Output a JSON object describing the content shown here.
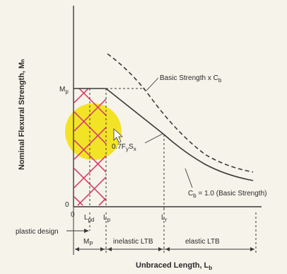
{
  "diagram": {
    "y_axis_title": "Nominal Flexural Strength, Mₙ",
    "x_axis_title": "Unbraced Length, L",
    "x_axis_title_sub": "b",
    "mp_label": "M",
    "mp_label_sub": "p",
    "origin_label": "0",
    "origin_label_x": "0",
    "lpd_label": "L",
    "lpd_label_sub": "pd",
    "lp_label": "L",
    "lp_label_sub": "p",
    "lr_label": "L",
    "lr_label_sub": "r",
    "curve_cb_label": "Basic Strength x C",
    "curve_cb_label_sub": "b",
    "curve_basic_label": "C",
    "curve_basic_label_sub": "b",
    "curve_basic_label_rest": " = 1.0 (Basic Strength)",
    "mid_value_label": "0.7F",
    "mid_value_label_sub1": "y",
    "mid_value_label_s": "S",
    "mid_value_label_sub2": "x",
    "plastic_design": "plastic design",
    "zone_mp": "M",
    "zone_mp_sub": "P",
    "zone_inelastic": "inelastic LTB",
    "zone_elastic": "elastic LTB"
  },
  "colors": {
    "highlight": "#f2e21c",
    "hatch": "#d9416a",
    "line": "#3a3a3a"
  }
}
